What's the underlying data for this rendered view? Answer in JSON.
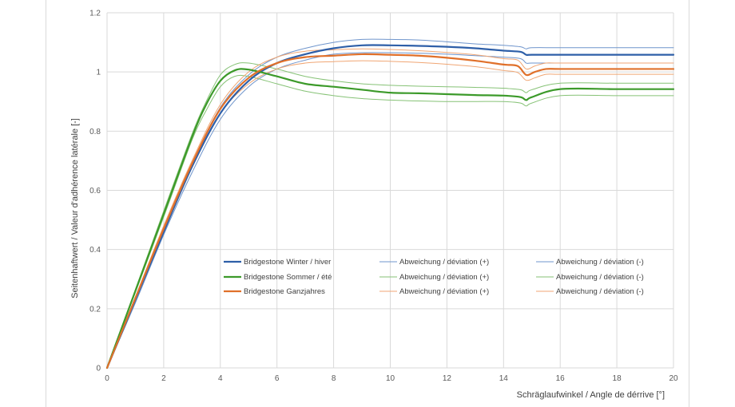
{
  "chart_data": {
    "type": "line",
    "title": "",
    "xlabel": "Schräglaufwinkel / Angle de dérrive [°]",
    "ylabel": "Seitenhaftwert / Valeur d'adhérence latérale [-]",
    "xlim": [
      0,
      20
    ],
    "ylim": [
      0,
      1.2
    ],
    "xticks": [
      "0",
      "2",
      "4",
      "6",
      "8",
      "10",
      "12",
      "14",
      "16",
      "18",
      "20"
    ],
    "yticks": [
      "0",
      "0.2",
      "0.4",
      "0.6",
      "0.8",
      "1",
      "1.2"
    ],
    "grid": true,
    "legend_position": "lower-center",
    "series": [
      {
        "name": "Bridgestone Winter / hiver",
        "color": "#2e5fa8",
        "width": 2.2,
        "x": [
          0,
          1,
          2,
          3,
          4,
          5,
          6,
          7,
          8,
          9,
          10,
          11,
          12,
          13,
          14,
          14.6,
          14.8,
          15,
          16,
          18,
          20
        ],
        "y": [
          0,
          0.23,
          0.46,
          0.68,
          0.86,
          0.97,
          1.03,
          1.06,
          1.08,
          1.09,
          1.09,
          1.088,
          1.085,
          1.08,
          1.072,
          1.068,
          1.058,
          1.058,
          1.058,
          1.058,
          1.058
        ]
      },
      {
        "name": "Abweichung / déviation (+)",
        "color": "#6f95cc",
        "width": 1,
        "x": [
          0,
          1,
          2,
          3,
          4,
          5,
          6,
          7,
          8,
          9,
          10,
          11,
          12,
          13,
          14,
          14.6,
          14.8,
          15,
          16,
          18,
          20
        ],
        "y": [
          0,
          0.24,
          0.47,
          0.69,
          0.88,
          0.99,
          1.05,
          1.08,
          1.1,
          1.11,
          1.11,
          1.108,
          1.102,
          1.095,
          1.09,
          1.085,
          1.078,
          1.082,
          1.082,
          1.082,
          1.082
        ]
      },
      {
        "name": "Abweichung / déviation (-)",
        "color": "#6f95cc",
        "width": 1,
        "x": [
          0,
          1,
          2,
          3,
          4,
          5,
          6,
          7,
          8,
          9,
          10,
          11,
          12,
          13,
          14,
          14.6,
          14.8,
          15,
          16,
          18,
          20
        ],
        "y": [
          0,
          0.22,
          0.45,
          0.66,
          0.84,
          0.95,
          1.01,
          1.04,
          1.06,
          1.065,
          1.065,
          1.063,
          1.06,
          1.055,
          1.05,
          1.045,
          1.03,
          1.03,
          1.03,
          1.03,
          1.03
        ]
      },
      {
        "name": "Bridgestone Sommer / été",
        "color": "#3c9a2a",
        "width": 2.2,
        "x": [
          0,
          1,
          2,
          3,
          3.5,
          4,
          4.5,
          5,
          6,
          7,
          8,
          9,
          10,
          11,
          12,
          13,
          14,
          14.6,
          14.8,
          15,
          16,
          18,
          20
        ],
        "y": [
          0,
          0.26,
          0.52,
          0.78,
          0.89,
          0.97,
          1.005,
          1.008,
          0.985,
          0.96,
          0.95,
          0.94,
          0.93,
          0.928,
          0.925,
          0.922,
          0.92,
          0.915,
          0.905,
          0.915,
          0.942,
          0.942,
          0.942
        ]
      },
      {
        "name": "Abweichung / déviation (+)",
        "color": "#86c276",
        "width": 1,
        "x": [
          0,
          1,
          2,
          3,
          3.5,
          4,
          4.5,
          5,
          6,
          7,
          8,
          9,
          10,
          11,
          12,
          13,
          14,
          14.6,
          14.8,
          15,
          16,
          18,
          20
        ],
        "y": [
          0,
          0.265,
          0.53,
          0.79,
          0.9,
          0.99,
          1.025,
          1.03,
          1.01,
          0.985,
          0.97,
          0.96,
          0.955,
          0.952,
          0.95,
          0.948,
          0.945,
          0.94,
          0.93,
          0.94,
          0.962,
          0.962,
          0.962
        ]
      },
      {
        "name": "Abweichung / déviation (-)",
        "color": "#86c276",
        "width": 1,
        "x": [
          0,
          1,
          2,
          3,
          3.5,
          4,
          4.5,
          5,
          6,
          7,
          8,
          9,
          10,
          11,
          12,
          13,
          14,
          14.6,
          14.8,
          15,
          16,
          18,
          20
        ],
        "y": [
          0,
          0.255,
          0.51,
          0.77,
          0.87,
          0.95,
          0.985,
          0.985,
          0.96,
          0.935,
          0.92,
          0.91,
          0.905,
          0.902,
          0.9,
          0.9,
          0.9,
          0.895,
          0.885,
          0.895,
          0.92,
          0.92,
          0.92
        ]
      },
      {
        "name": "Bridgestone Ganzjahres",
        "color": "#e0702a",
        "width": 2.2,
        "x": [
          0,
          1,
          2,
          3,
          4,
          5,
          6,
          7,
          8,
          9,
          10,
          11,
          12,
          13,
          14,
          14.5,
          14.8,
          15.1,
          15.5,
          16,
          18,
          20
        ],
        "y": [
          0,
          0.235,
          0.47,
          0.69,
          0.875,
          0.98,
          1.03,
          1.05,
          1.055,
          1.06,
          1.058,
          1.055,
          1.048,
          1.038,
          1.025,
          1.02,
          0.99,
          1.0,
          1.01,
          1.01,
          1.01,
          1.01
        ]
      },
      {
        "name": "Abweichung / déviation (+)",
        "color": "#f0a674",
        "width": 1,
        "x": [
          0,
          1,
          2,
          3,
          4,
          5,
          6,
          7,
          8,
          9,
          10,
          11,
          12,
          13,
          14,
          14.5,
          14.8,
          15.1,
          15.5,
          16,
          18,
          20
        ],
        "y": [
          0,
          0.24,
          0.48,
          0.7,
          0.89,
          1.0,
          1.05,
          1.07,
          1.075,
          1.078,
          1.076,
          1.072,
          1.066,
          1.058,
          1.045,
          1.04,
          1.01,
          1.02,
          1.03,
          1.03,
          1.03,
          1.03
        ]
      },
      {
        "name": "Abweichung / déviation (-)",
        "color": "#f0a674",
        "width": 1,
        "x": [
          0,
          1,
          2,
          3,
          4,
          5,
          6,
          7,
          8,
          9,
          10,
          11,
          12,
          13,
          14,
          14.5,
          14.8,
          15.1,
          15.5,
          16,
          18,
          20
        ],
        "y": [
          0,
          0.23,
          0.46,
          0.68,
          0.86,
          0.96,
          1.01,
          1.03,
          1.035,
          1.038,
          1.036,
          1.032,
          1.026,
          1.018,
          1.005,
          0.998,
          0.972,
          0.98,
          0.992,
          0.992,
          0.992,
          0.992
        ]
      }
    ]
  }
}
